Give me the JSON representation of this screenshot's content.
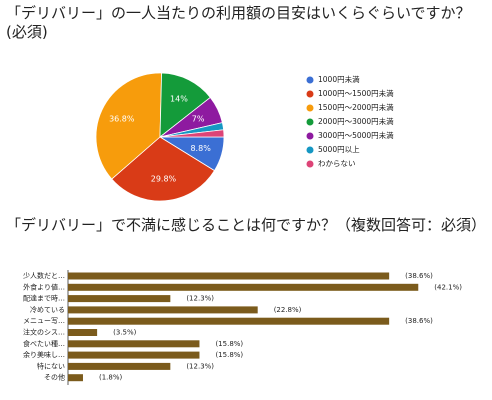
{
  "chart_data": [
    {
      "type": "pie",
      "title": "「デリバリー」の一人当たりの利用額の目安はいくらぐらいですか？(必須)",
      "categories": [
        "1000円未満",
        "1000円〜1500円未満",
        "1500円〜2000円未満",
        "2000円〜3000円未満",
        "3000円〜5000円未満",
        "5000円以上",
        "わからない"
      ],
      "values": [
        8.8,
        29.8,
        36.8,
        14,
        7,
        1.8,
        1.8
      ],
      "value_labels": [
        "8.8%",
        "29.8%",
        "36.8%",
        "14%",
        "7%",
        null,
        null
      ],
      "colors": [
        "#3b6fd4",
        "#d93b17",
        "#f79c0c",
        "#149b3a",
        "#8e1aa0",
        "#1597c3",
        "#dd4477"
      ],
      "legend": "right"
    },
    {
      "type": "hbar",
      "title": "「デリバリー」で不満に感じることは何ですか？（複数回答可：必須）",
      "categories": [
        "少人数だと…",
        "外食より値…",
        "配達まで時…",
        "冷めている",
        "メニュー写…",
        "注文のシス…",
        "食べたい種…",
        "余り美味し…",
        "特にない",
        "その他"
      ],
      "values": [
        38.6,
        42.1,
        12.3,
        22.8,
        38.6,
        3.5,
        15.8,
        15.8,
        12.3,
        1.8
      ],
      "value_labels": [
        "(38.6%)",
        "(42.1%)",
        "(12.3%)",
        "(22.8%)",
        "(38.6%)",
        "(3.5%)",
        "(15.8%)",
        "(15.8%)",
        "(12.3%)",
        "(1.8%)"
      ],
      "color": "#7b5b1c"
    }
  ]
}
